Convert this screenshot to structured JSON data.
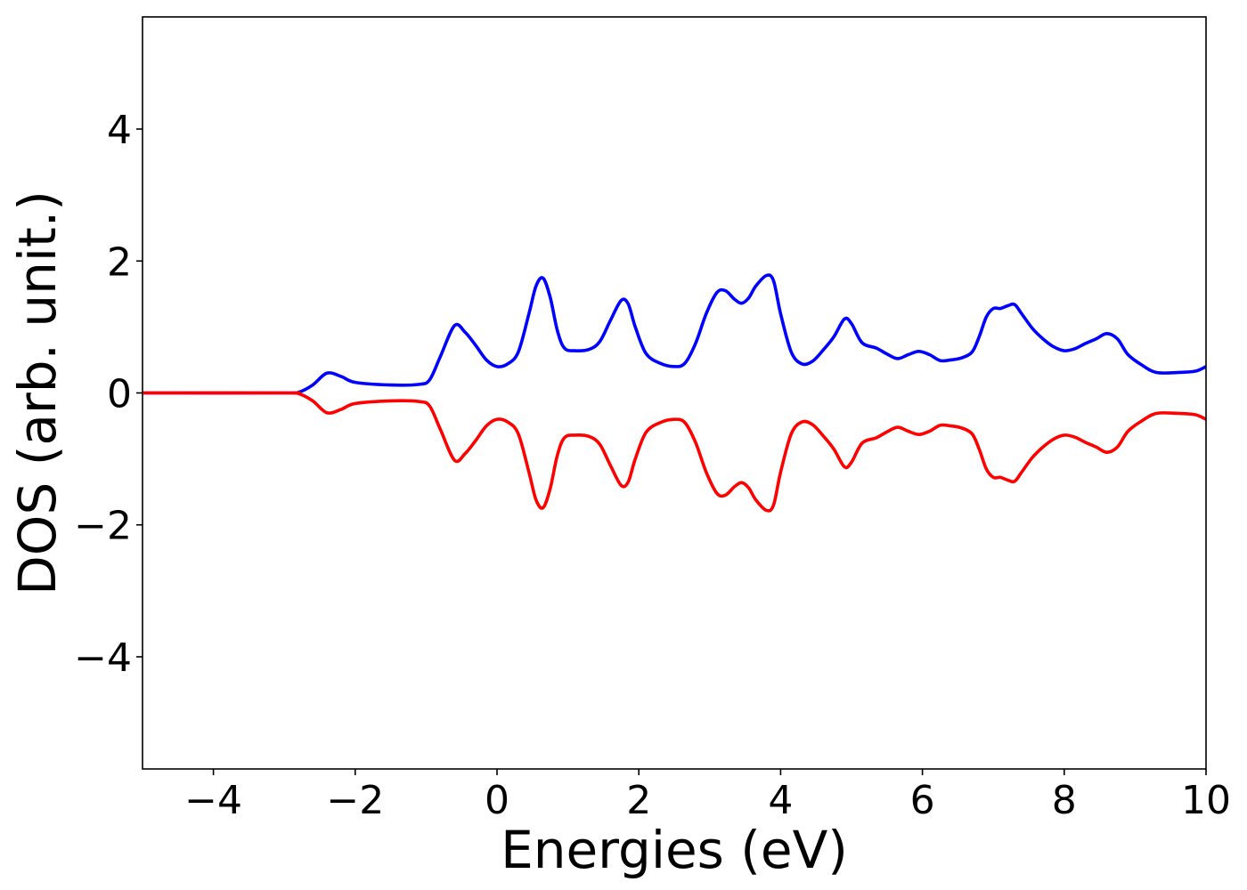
{
  "chart_data": {
    "type": "line",
    "xlabel": "Energies (eV)",
    "ylabel": "DOS (arb. unit.)",
    "xlim": [
      -5,
      10
    ],
    "ylim": [
      -5.7,
      5.7
    ],
    "xticks": [
      -4,
      -2,
      0,
      2,
      4,
      6,
      8,
      10
    ],
    "yticks": [
      -4,
      -2,
      0,
      2,
      4
    ],
    "xtick_labels": [
      "−4",
      "−2",
      "0",
      "2",
      "4",
      "6",
      "8",
      "10"
    ],
    "ytick_labels": [
      "−4",
      "−2",
      "0",
      "2",
      "4"
    ],
    "grid": false,
    "series": [
      {
        "color": "#0000ff",
        "x": [
          -5,
          -3.0,
          -2.8,
          -2.6,
          -2.4,
          -2.2,
          -2.0,
          -1.5,
          -1.1,
          -0.95,
          -0.8,
          -0.6,
          -0.45,
          -0.3,
          -0.15,
          0.0,
          0.15,
          0.3,
          0.45,
          0.55,
          0.65,
          0.75,
          0.85,
          0.95,
          1.1,
          1.3,
          1.45,
          1.6,
          1.75,
          1.85,
          1.95,
          2.1,
          2.3,
          2.5,
          2.65,
          2.8,
          2.95,
          3.1,
          3.22,
          3.35,
          3.45,
          3.55,
          3.65,
          3.8,
          3.9,
          4.0,
          4.15,
          4.3,
          4.45,
          4.6,
          4.75,
          4.9,
          5.0,
          5.15,
          5.35,
          5.5,
          5.65,
          5.8,
          5.95,
          6.1,
          6.25,
          6.4,
          6.55,
          6.7,
          6.8,
          6.9,
          7.0,
          7.1,
          7.2,
          7.3,
          7.4,
          7.55,
          7.7,
          7.85,
          8.0,
          8.15,
          8.3,
          8.45,
          8.6,
          8.75,
          8.9,
          9.1,
          9.3,
          9.6,
          9.85,
          10.0
        ],
        "y": [
          0,
          0,
          0.01,
          0.12,
          0.3,
          0.25,
          0.16,
          0.12,
          0.13,
          0.2,
          0.55,
          1.02,
          0.92,
          0.72,
          0.5,
          0.4,
          0.44,
          0.62,
          1.2,
          1.62,
          1.74,
          1.45,
          0.95,
          0.68,
          0.64,
          0.66,
          0.78,
          1.1,
          1.4,
          1.35,
          1.0,
          0.6,
          0.45,
          0.4,
          0.45,
          0.75,
          1.2,
          1.52,
          1.55,
          1.42,
          1.36,
          1.44,
          1.62,
          1.78,
          1.7,
          1.2,
          0.62,
          0.44,
          0.48,
          0.65,
          0.85,
          1.12,
          1.05,
          0.76,
          0.68,
          0.59,
          0.52,
          0.58,
          0.63,
          0.58,
          0.49,
          0.5,
          0.53,
          0.62,
          0.85,
          1.15,
          1.28,
          1.28,
          1.32,
          1.34,
          1.2,
          0.98,
          0.82,
          0.7,
          0.64,
          0.67,
          0.75,
          0.82,
          0.9,
          0.82,
          0.58,
          0.42,
          0.31,
          0.31,
          0.33,
          0.4
        ]
      },
      {
        "color": "#ff0000",
        "x": [
          -5,
          -3.0,
          -2.8,
          -2.6,
          -2.4,
          -2.2,
          -2.0,
          -1.5,
          -1.1,
          -0.95,
          -0.8,
          -0.6,
          -0.45,
          -0.3,
          -0.15,
          0.0,
          0.15,
          0.3,
          0.45,
          0.55,
          0.65,
          0.75,
          0.85,
          0.95,
          1.1,
          1.3,
          1.45,
          1.6,
          1.75,
          1.85,
          1.95,
          2.1,
          2.3,
          2.5,
          2.65,
          2.8,
          2.95,
          3.1,
          3.22,
          3.35,
          3.45,
          3.55,
          3.65,
          3.8,
          3.9,
          4.0,
          4.15,
          4.3,
          4.45,
          4.6,
          4.75,
          4.9,
          5.0,
          5.15,
          5.35,
          5.5,
          5.65,
          5.8,
          5.95,
          6.1,
          6.25,
          6.4,
          6.55,
          6.7,
          6.8,
          6.9,
          7.0,
          7.1,
          7.2,
          7.3,
          7.4,
          7.55,
          7.7,
          7.85,
          8.0,
          8.15,
          8.3,
          8.45,
          8.6,
          8.75,
          8.9,
          9.1,
          9.3,
          9.6,
          9.85,
          10.0
        ],
        "y": [
          0,
          0,
          -0.01,
          -0.12,
          -0.3,
          -0.25,
          -0.16,
          -0.12,
          -0.13,
          -0.2,
          -0.55,
          -1.02,
          -0.92,
          -0.72,
          -0.5,
          -0.4,
          -0.44,
          -0.62,
          -1.2,
          -1.62,
          -1.74,
          -1.45,
          -0.95,
          -0.68,
          -0.64,
          -0.66,
          -0.78,
          -1.1,
          -1.4,
          -1.35,
          -1.0,
          -0.6,
          -0.45,
          -0.4,
          -0.45,
          -0.75,
          -1.2,
          -1.52,
          -1.55,
          -1.42,
          -1.36,
          -1.44,
          -1.62,
          -1.78,
          -1.7,
          -1.2,
          -0.62,
          -0.44,
          -0.48,
          -0.65,
          -0.85,
          -1.12,
          -1.05,
          -0.76,
          -0.68,
          -0.59,
          -0.52,
          -0.58,
          -0.63,
          -0.58,
          -0.49,
          -0.5,
          -0.53,
          -0.62,
          -0.85,
          -1.15,
          -1.28,
          -1.28,
          -1.32,
          -1.34,
          -1.2,
          -0.98,
          -0.82,
          -0.7,
          -0.64,
          -0.67,
          -0.75,
          -0.82,
          -0.9,
          -0.82,
          -0.58,
          -0.42,
          -0.31,
          -0.31,
          -0.33,
          -0.4
        ]
      }
    ]
  }
}
